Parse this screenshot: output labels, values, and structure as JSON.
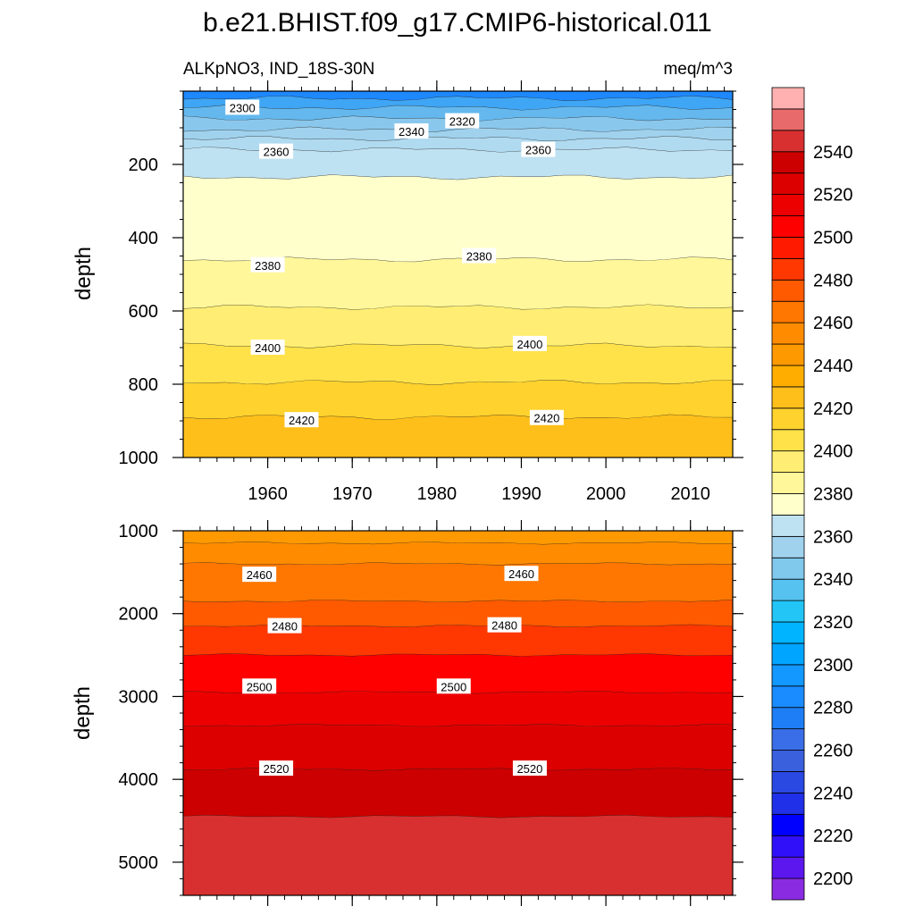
{
  "chart_data": {
    "type": "heatmap",
    "title": "b.e21.BHIST.f09_g17.CMIP6-historical.011",
    "left_subtitle": "ALKpNO3, IND_18S-30N",
    "right_subtitle": "meq/m^3",
    "xlabel": "",
    "ylabel": "depth",
    "x_range": [
      1950,
      2015
    ],
    "x_ticks": [
      "1960",
      "1970",
      "1980",
      "1990",
      "2000",
      "2010"
    ],
    "panels": [
      {
        "name": "upper",
        "ylim": [
          1000,
          0
        ],
        "y_ticks": [
          "200",
          "400",
          "600",
          "800",
          "1000"
        ],
        "bands": [
          {
            "top": 0,
            "bottom": 20,
            "color": "#1e88ff"
          },
          {
            "top": 20,
            "bottom": 45,
            "color": "#3fa5f5"
          },
          {
            "top": 45,
            "bottom": 75,
            "color": "#64b8ee"
          },
          {
            "top": 75,
            "bottom": 105,
            "color": "#8ac7ec"
          },
          {
            "top": 105,
            "bottom": 130,
            "color": "#a0d2ee"
          },
          {
            "top": 130,
            "bottom": 160,
            "color": "#b0daf0"
          },
          {
            "top": 160,
            "bottom": 235,
            "color": "#bfe2f2"
          },
          {
            "top": 235,
            "bottom": 460,
            "color": "#ffffcc"
          },
          {
            "top": 460,
            "bottom": 590,
            "color": "#fff79a"
          },
          {
            "top": 590,
            "bottom": 695,
            "color": "#ffee73"
          },
          {
            "top": 695,
            "bottom": 795,
            "color": "#ffe24a"
          },
          {
            "top": 795,
            "bottom": 890,
            "color": "#ffd22d"
          },
          {
            "top": 890,
            "bottom": 1000,
            "color": "#ffbf1a"
          }
        ],
        "contour_labels": [
          {
            "text": "2300",
            "x": 1957,
            "y": 45
          },
          {
            "text": "2320",
            "x": 1983,
            "y": 82
          },
          {
            "text": "2340",
            "x": 1977,
            "y": 110
          },
          {
            "text": "2360",
            "x": 1961,
            "y": 165
          },
          {
            "text": "2360",
            "x": 1992,
            "y": 160
          },
          {
            "text": "2380",
            "x": 1960,
            "y": 475
          },
          {
            "text": "2380",
            "x": 1985,
            "y": 450
          },
          {
            "text": "2400",
            "x": 1960,
            "y": 700
          },
          {
            "text": "2400",
            "x": 1991,
            "y": 690
          },
          {
            "text": "2420",
            "x": 1964,
            "y": 898
          },
          {
            "text": "2420",
            "x": 1993,
            "y": 892
          }
        ]
      },
      {
        "name": "lower",
        "ylim": [
          5400,
          1000
        ],
        "y_ticks": [
          "1000",
          "2000",
          "3000",
          "4000",
          "5000"
        ],
        "bands": [
          {
            "top": 1000,
            "bottom": 1150,
            "color": "#ff9900"
          },
          {
            "top": 1150,
            "bottom": 1400,
            "color": "#ff8c00"
          },
          {
            "top": 1400,
            "bottom": 1850,
            "color": "#ff7700"
          },
          {
            "top": 1850,
            "bottom": 2150,
            "color": "#ff5a00"
          },
          {
            "top": 2150,
            "bottom": 2500,
            "color": "#ff3700"
          },
          {
            "top": 2500,
            "bottom": 2950,
            "color": "#ff0000"
          },
          {
            "top": 2950,
            "bottom": 3350,
            "color": "#ec0000"
          },
          {
            "top": 3350,
            "bottom": 3880,
            "color": "#dc0000"
          },
          {
            "top": 3880,
            "bottom": 4450,
            "color": "#cc0000"
          },
          {
            "top": 4450,
            "bottom": 5400,
            "color": "#d83030"
          }
        ],
        "contour_labels": [
          {
            "text": "2460",
            "x": 1959,
            "y": 1530
          },
          {
            "text": "2460",
            "x": 1990,
            "y": 1520
          },
          {
            "text": "2480",
            "x": 1962,
            "y": 2150
          },
          {
            "text": "2480",
            "x": 1988,
            "y": 2140
          },
          {
            "text": "2500",
            "x": 1959,
            "y": 2880
          },
          {
            "text": "2500",
            "x": 1982,
            "y": 2880
          },
          {
            "text": "2520",
            "x": 1961,
            "y": 3870
          },
          {
            "text": "2520",
            "x": 1991,
            "y": 3870
          }
        ]
      }
    ],
    "colorbar": {
      "levels": [
        2200,
        2210,
        2220,
        2230,
        2240,
        2250,
        2260,
        2270,
        2280,
        2290,
        2300,
        2310,
        2320,
        2330,
        2340,
        2350,
        2360,
        2370,
        2380,
        2390,
        2400,
        2410,
        2420,
        2430,
        2440,
        2450,
        2460,
        2470,
        2480,
        2490,
        2500,
        2510,
        2520,
        2530,
        2540,
        2550
      ],
      "colors": [
        "#8a2be2",
        "#5c16ee",
        "#3010f8",
        "#0000ff",
        "#2030e8",
        "#2a48e2",
        "#3a60de",
        "#3a6ee8",
        "#1e7ef5",
        "#1a8cff",
        "#1298ff",
        "#00a5ff",
        "#00b4ff",
        "#22c5f6",
        "#55c2f0",
        "#80c8ec",
        "#a0d2ee",
        "#bfe2f2",
        "#ffffcc",
        "#fff79a",
        "#ffee73",
        "#ffe24a",
        "#ffd22d",
        "#ffbf1a",
        "#ffae00",
        "#ff9900",
        "#ff8c00",
        "#ff7700",
        "#ff5a00",
        "#ff3700",
        "#ff1a00",
        "#ff0000",
        "#ec0000",
        "#dc0000",
        "#cc0000",
        "#d83030",
        "#e86a6a",
        "#ffb0b0"
      ],
      "tick_labels": [
        "2200",
        "2220",
        "2240",
        "2260",
        "2280",
        "2300",
        "2320",
        "2340",
        "2360",
        "2380",
        "2400",
        "2420",
        "2440",
        "2460",
        "2480",
        "2500",
        "2520",
        "2540"
      ]
    }
  }
}
